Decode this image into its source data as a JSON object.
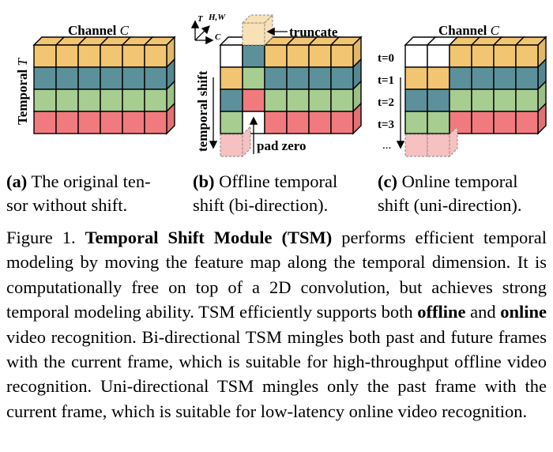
{
  "colors": {
    "row0": "#f2c572",
    "row1": "#5c919b",
    "row2": "#a8cd91",
    "row3": "#f17a7e",
    "empty": "#ffffff",
    "ghost_yellow": "#f8e1b6",
    "ghost_pink": "#f7c0c1",
    "stroke": "#000000"
  },
  "figure": {
    "panel_a": {
      "channel_label": "Channel",
      "channel_symbol": "C",
      "temporal_label": "Temporal",
      "temporal_symbol": "T",
      "rows": [
        [
          "row0",
          "row0",
          "row0",
          "row0",
          "row0",
          "row0"
        ],
        [
          "row1",
          "row1",
          "row1",
          "row1",
          "row1",
          "row1"
        ],
        [
          "row2",
          "row2",
          "row2",
          "row2",
          "row2",
          "row2"
        ],
        [
          "row3",
          "row3",
          "row3",
          "row3",
          "row3",
          "row3"
        ]
      ]
    },
    "panel_b": {
      "axis_T": "T",
      "axis_HW": "H,W",
      "axis_C": "C",
      "truncate_label": "truncate",
      "pad_zero_label": "pad zero",
      "temporal_shift_label": "temporal shift",
      "rows": [
        [
          "empty",
          "row1",
          "row0",
          "row0",
          "row0",
          "row0"
        ],
        [
          "row0",
          "row2",
          "row1",
          "row1",
          "row1",
          "row1"
        ],
        [
          "row1",
          "row3",
          "row2",
          "row2",
          "row2",
          "row2"
        ],
        [
          "row2",
          "empty",
          "row3",
          "row3",
          "row3",
          "row3"
        ]
      ]
    },
    "panel_c": {
      "channel_label": "Channel",
      "channel_symbol": "C",
      "time_labels": [
        "t=0",
        "t=1",
        "t=2",
        "t=3",
        "..."
      ],
      "rows": [
        [
          "empty",
          "empty",
          "row0",
          "row0",
          "row0",
          "row0"
        ],
        [
          "row0",
          "row0",
          "row1",
          "row1",
          "row1",
          "row1"
        ],
        [
          "row1",
          "row1",
          "row2",
          "row2",
          "row2",
          "row2"
        ],
        [
          "row2",
          "row2",
          "row3",
          "row3",
          "row3",
          "row3"
        ]
      ]
    }
  },
  "subcaptions": {
    "a": {
      "tag": "(a)",
      "text": " The original ten-",
      "line2": "sor without shift."
    },
    "b": {
      "tag": "(b)",
      "text": " Offline temporal",
      "line2": "shift (bi-direction)."
    },
    "c": {
      "tag": "(c)",
      "text": " Online temporal",
      "line2": "shift (uni-direction)."
    }
  },
  "caption": {
    "prefix": "Figure 1. ",
    "title": "Temporal Shift Module (TSM)",
    "part1": " performs efficient temporal modeling by moving the feature map along the temporal dimension. It is computationally free on top of a 2D convolution, but achieves strong temporal modeling ability. TSM efficiently supports both ",
    "bold_offline": "offline",
    "part2": " and ",
    "bold_online": "online",
    "part3": " video recognition. Bi-directional TSM mingles both past and future frames with the current frame, which is suitable for high-throughput offline video recognition. Uni-directional TSM mingles only the past frame with the current frame, which is suitable for low-latency online video recognition."
  }
}
